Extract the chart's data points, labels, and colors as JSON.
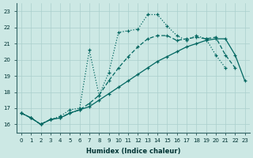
{
  "xlabel": "Humidex (Indice chaleur)",
  "bg_color": "#cce8e4",
  "grid_color": "#aacfcc",
  "line_color": "#006660",
  "xlim": [
    -0.5,
    23.5
  ],
  "ylim": [
    15.5,
    23.5
  ],
  "yticks": [
    16,
    17,
    18,
    19,
    20,
    21,
    22,
    23
  ],
  "xticks": [
    0,
    1,
    2,
    3,
    4,
    5,
    6,
    7,
    8,
    9,
    10,
    11,
    12,
    13,
    14,
    15,
    16,
    17,
    18,
    19,
    20,
    21,
    22,
    23
  ],
  "line_solid_x": [
    0,
    1,
    2,
    3,
    4,
    5,
    6,
    7,
    8,
    9,
    10,
    11,
    12,
    13,
    14,
    15,
    16,
    17,
    18,
    19,
    20,
    21,
    22,
    23
  ],
  "line_solid_y": [
    16.7,
    16.4,
    16.0,
    16.3,
    16.4,
    16.7,
    16.9,
    17.1,
    17.5,
    17.9,
    18.3,
    18.7,
    19.1,
    19.5,
    19.9,
    20.2,
    20.5,
    20.8,
    21.0,
    21.2,
    21.3,
    21.3,
    20.3,
    18.7
  ],
  "line_dash_x": [
    0,
    1,
    2,
    3,
    4,
    5,
    6,
    7,
    8,
    9,
    10,
    11,
    12,
    13,
    14,
    15,
    16,
    17,
    18,
    19,
    20,
    21,
    22
  ],
  "line_dash_y": [
    16.7,
    16.4,
    16.0,
    16.3,
    16.4,
    16.7,
    16.9,
    17.3,
    17.8,
    18.7,
    19.5,
    20.2,
    20.8,
    21.3,
    21.5,
    21.5,
    21.2,
    21.3,
    21.4,
    21.3,
    21.4,
    20.3,
    19.5
  ],
  "line_dot_x": [
    0,
    1,
    2,
    3,
    4,
    5,
    6,
    7,
    8,
    9,
    10,
    11,
    12,
    13,
    14,
    15,
    16,
    17,
    18,
    19,
    20,
    21
  ],
  "line_dot_y": [
    16.7,
    16.4,
    16.0,
    16.3,
    16.5,
    16.9,
    17.0,
    20.6,
    17.8,
    19.2,
    21.7,
    21.8,
    21.9,
    22.8,
    22.8,
    22.1,
    21.5,
    21.2,
    21.5,
    21.3,
    20.3,
    19.5
  ]
}
